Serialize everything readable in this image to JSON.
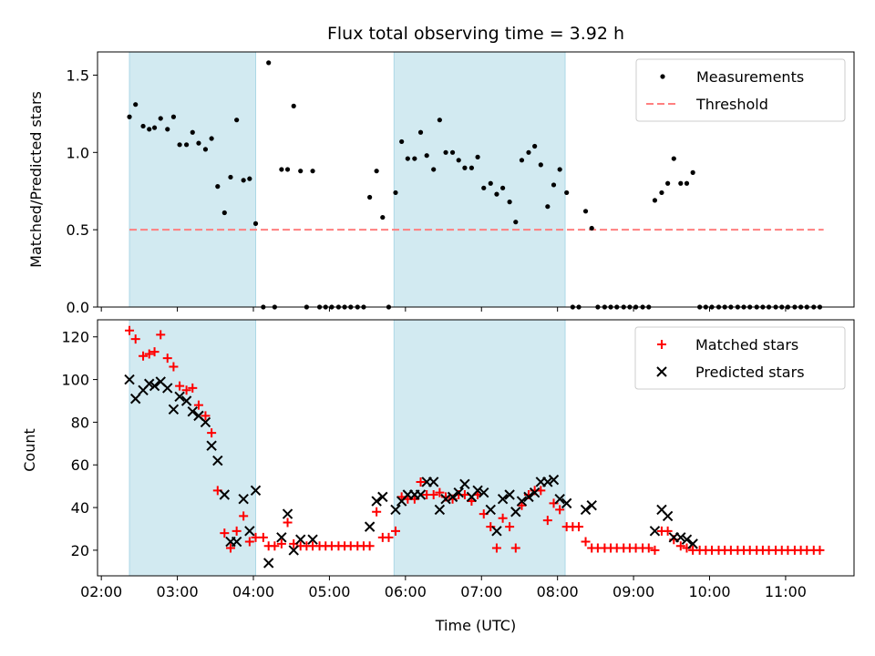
{
  "chart_data": {
    "title": "Flux total observing time = 3.92 h",
    "xlabel": "Time (UTC)",
    "x_unit": "hours",
    "xlim": [
      1.95,
      11.9
    ],
    "xticks": [
      {
        "v": 2,
        "label": "02:00"
      },
      {
        "v": 3,
        "label": "03:00"
      },
      {
        "v": 4,
        "label": "04:00"
      },
      {
        "v": 5,
        "label": "05:00"
      },
      {
        "v": 6,
        "label": "06:00"
      },
      {
        "v": 7,
        "label": "07:00"
      },
      {
        "v": 8,
        "label": "08:00"
      },
      {
        "v": 9,
        "label": "09:00"
      },
      {
        "v": 10,
        "label": "10:00"
      },
      {
        "v": 11,
        "label": "11:00"
      }
    ],
    "shaded_spans": [
      [
        2.37,
        4.03
      ],
      [
        5.85,
        8.1
      ]
    ],
    "shade_color": "#add8e6",
    "top": {
      "type": "scatter",
      "ylabel": "Matched/Predicted stars",
      "ylim": [
        0,
        1.65
      ],
      "yticks": [
        {
          "v": 0,
          "label": "0.0"
        },
        {
          "v": 0.5,
          "label": "0.5"
        },
        {
          "v": 1.0,
          "label": "1.0"
        },
        {
          "v": 1.5,
          "label": "1.5"
        }
      ],
      "legend": [
        {
          "name": "Measurements",
          "marker": "dot",
          "color": "#000000"
        },
        {
          "name": "Threshold",
          "marker": "dash",
          "color": "#ff7f7f"
        }
      ],
      "threshold": {
        "y": 0.5,
        "x": [
          2.37,
          11.5
        ],
        "color": "#ff7f7f"
      },
      "measurements": [
        [
          2.37,
          1.23
        ],
        [
          2.45,
          1.31
        ],
        [
          2.55,
          1.17
        ],
        [
          2.63,
          1.15
        ],
        [
          2.7,
          1.16
        ],
        [
          2.78,
          1.22
        ],
        [
          2.87,
          1.15
        ],
        [
          2.95,
          1.23
        ],
        [
          3.03,
          1.05
        ],
        [
          3.12,
          1.05
        ],
        [
          3.2,
          1.13
        ],
        [
          3.28,
          1.06
        ],
        [
          3.37,
          1.02
        ],
        [
          3.45,
          1.09
        ],
        [
          3.53,
          0.78
        ],
        [
          3.62,
          0.61
        ],
        [
          3.7,
          0.84
        ],
        [
          3.78,
          1.21
        ],
        [
          3.87,
          0.82
        ],
        [
          3.95,
          0.83
        ],
        [
          4.03,
          0.54
        ],
        [
          4.13,
          0.0
        ],
        [
          4.2,
          1.58
        ],
        [
          4.28,
          0.0
        ],
        [
          4.37,
          0.89
        ],
        [
          4.45,
          0.89
        ],
        [
          4.53,
          1.3
        ],
        [
          4.62,
          0.88
        ],
        [
          4.7,
          0.0
        ],
        [
          4.78,
          0.88
        ],
        [
          4.87,
          0.0
        ],
        [
          4.95,
          0.0
        ],
        [
          5.03,
          0.0
        ],
        [
          5.12,
          0.0
        ],
        [
          5.2,
          0.0
        ],
        [
          5.28,
          0.0
        ],
        [
          5.37,
          0.0
        ],
        [
          5.45,
          0.0
        ],
        [
          5.53,
          0.71
        ],
        [
          5.62,
          0.88
        ],
        [
          5.7,
          0.58
        ],
        [
          5.78,
          0.0
        ],
        [
          5.87,
          0.74
        ],
        [
          5.95,
          1.07
        ],
        [
          6.03,
          0.96
        ],
        [
          6.12,
          0.96
        ],
        [
          6.2,
          1.13
        ],
        [
          6.28,
          0.98
        ],
        [
          6.37,
          0.89
        ],
        [
          6.45,
          1.21
        ],
        [
          6.53,
          1.0
        ],
        [
          6.62,
          1.0
        ],
        [
          6.7,
          0.95
        ],
        [
          6.78,
          0.9
        ],
        [
          6.87,
          0.9
        ],
        [
          6.95,
          0.97
        ],
        [
          7.03,
          0.77
        ],
        [
          7.12,
          0.8
        ],
        [
          7.2,
          0.73
        ],
        [
          7.28,
          0.77
        ],
        [
          7.37,
          0.68
        ],
        [
          7.45,
          0.55
        ],
        [
          7.53,
          0.95
        ],
        [
          7.62,
          1.0
        ],
        [
          7.7,
          1.04
        ],
        [
          7.78,
          0.92
        ],
        [
          7.87,
          0.65
        ],
        [
          7.95,
          0.79
        ],
        [
          8.03,
          0.89
        ],
        [
          8.12,
          0.74
        ],
        [
          8.2,
          0.0
        ],
        [
          8.28,
          0.0
        ],
        [
          8.37,
          0.62
        ],
        [
          8.45,
          0.51
        ],
        [
          8.53,
          0.0
        ],
        [
          8.62,
          0.0
        ],
        [
          8.7,
          0.0
        ],
        [
          8.78,
          0.0
        ],
        [
          8.87,
          0.0
        ],
        [
          8.95,
          0.0
        ],
        [
          9.03,
          0.0
        ],
        [
          9.12,
          0.0
        ],
        [
          9.2,
          0.0
        ],
        [
          9.28,
          0.69
        ],
        [
          9.37,
          0.74
        ],
        [
          9.45,
          0.8
        ],
        [
          9.53,
          0.96
        ],
        [
          9.62,
          0.8
        ],
        [
          9.7,
          0.8
        ],
        [
          9.78,
          0.87
        ],
        [
          9.87,
          0.0
        ],
        [
          9.95,
          0.0
        ],
        [
          10.03,
          0.0
        ],
        [
          10.12,
          0.0
        ],
        [
          10.2,
          0.0
        ],
        [
          10.28,
          0.0
        ],
        [
          10.37,
          0.0
        ],
        [
          10.45,
          0.0
        ],
        [
          10.53,
          0.0
        ],
        [
          10.62,
          0.0
        ],
        [
          10.7,
          0.0
        ],
        [
          10.78,
          0.0
        ],
        [
          10.87,
          0.0
        ],
        [
          10.95,
          0.0
        ],
        [
          11.03,
          0.0
        ],
        [
          11.12,
          0.0
        ],
        [
          11.2,
          0.0
        ],
        [
          11.28,
          0.0
        ],
        [
          11.37,
          0.0
        ],
        [
          11.45,
          0.0
        ]
      ]
    },
    "bottom": {
      "type": "scatter",
      "ylabel": "Count",
      "ylim": [
        8,
        128
      ],
      "yticks": [
        {
          "v": 20,
          "label": "20"
        },
        {
          "v": 40,
          "label": "40"
        },
        {
          "v": 60,
          "label": "60"
        },
        {
          "v": 80,
          "label": "80"
        },
        {
          "v": 100,
          "label": "100"
        },
        {
          "v": 120,
          "label": "120"
        }
      ],
      "legend": [
        {
          "name": "Matched stars",
          "marker": "plus",
          "color": "#ff0000"
        },
        {
          "name": "Predicted stars",
          "marker": "x",
          "color": "#000000"
        }
      ],
      "matched": [
        [
          2.37,
          123
        ],
        [
          2.45,
          119
        ],
        [
          2.55,
          111
        ],
        [
          2.63,
          112
        ],
        [
          2.7,
          113
        ],
        [
          2.78,
          121
        ],
        [
          2.87,
          110
        ],
        [
          2.95,
          106
        ],
        [
          3.03,
          97
        ],
        [
          3.12,
          95
        ],
        [
          3.2,
          96
        ],
        [
          3.28,
          88
        ],
        [
          3.37,
          83
        ],
        [
          3.45,
          75
        ],
        [
          3.53,
          48
        ],
        [
          3.62,
          28
        ],
        [
          3.7,
          21
        ],
        [
          3.78,
          29
        ],
        [
          3.87,
          36
        ],
        [
          3.95,
          24
        ],
        [
          4.03,
          26
        ],
        [
          4.13,
          26
        ],
        [
          4.2,
          22
        ],
        [
          4.28,
          22
        ],
        [
          4.37,
          23
        ],
        [
          4.45,
          33
        ],
        [
          4.53,
          23
        ],
        [
          4.62,
          22
        ],
        [
          4.7,
          22
        ],
        [
          4.78,
          22
        ],
        [
          4.87,
          22
        ],
        [
          4.95,
          22
        ],
        [
          5.03,
          22
        ],
        [
          5.12,
          22
        ],
        [
          5.2,
          22
        ],
        [
          5.28,
          22
        ],
        [
          5.37,
          22
        ],
        [
          5.45,
          22
        ],
        [
          5.53,
          22
        ],
        [
          5.62,
          38
        ],
        [
          5.7,
          26
        ],
        [
          5.78,
          26
        ],
        [
          5.87,
          29
        ],
        [
          5.95,
          45
        ],
        [
          6.03,
          44
        ],
        [
          6.12,
          44
        ],
        [
          6.2,
          52
        ],
        [
          6.28,
          46
        ],
        [
          6.37,
          46
        ],
        [
          6.45,
          47
        ],
        [
          6.53,
          45
        ],
        [
          6.62,
          44
        ],
        [
          6.7,
          46
        ],
        [
          6.78,
          46
        ],
        [
          6.87,
          43
        ],
        [
          6.95,
          46
        ],
        [
          7.03,
          37
        ],
        [
          7.12,
          31
        ],
        [
          7.2,
          21
        ],
        [
          7.28,
          35
        ],
        [
          7.37,
          31
        ],
        [
          7.45,
          21
        ],
        [
          7.53,
          41
        ],
        [
          7.62,
          46
        ],
        [
          7.7,
          48
        ],
        [
          7.78,
          48
        ],
        [
          7.87,
          34
        ],
        [
          7.95,
          42
        ],
        [
          8.03,
          39
        ],
        [
          8.12,
          31
        ],
        [
          8.2,
          31
        ],
        [
          8.28,
          31
        ],
        [
          8.37,
          24
        ],
        [
          8.45,
          21
        ],
        [
          8.53,
          21
        ],
        [
          8.62,
          21
        ],
        [
          8.7,
          21
        ],
        [
          8.78,
          21
        ],
        [
          8.87,
          21
        ],
        [
          8.95,
          21
        ],
        [
          9.03,
          21
        ],
        [
          9.12,
          21
        ],
        [
          9.2,
          21
        ],
        [
          9.28,
          20
        ],
        [
          9.37,
          29
        ],
        [
          9.45,
          29
        ],
        [
          9.53,
          25
        ],
        [
          9.62,
          22
        ],
        [
          9.7,
          21
        ],
        [
          9.78,
          20
        ],
        [
          9.87,
          20
        ],
        [
          9.95,
          20
        ],
        [
          10.03,
          20
        ],
        [
          10.12,
          20
        ],
        [
          10.2,
          20
        ],
        [
          10.28,
          20
        ],
        [
          10.37,
          20
        ],
        [
          10.45,
          20
        ],
        [
          10.53,
          20
        ],
        [
          10.62,
          20
        ],
        [
          10.7,
          20
        ],
        [
          10.78,
          20
        ],
        [
          10.87,
          20
        ],
        [
          10.95,
          20
        ],
        [
          11.03,
          20
        ],
        [
          11.12,
          20
        ],
        [
          11.2,
          20
        ],
        [
          11.28,
          20
        ],
        [
          11.37,
          20
        ],
        [
          11.45,
          20
        ]
      ],
      "predicted": [
        [
          2.37,
          100
        ],
        [
          2.45,
          91
        ],
        [
          2.55,
          95
        ],
        [
          2.63,
          98
        ],
        [
          2.7,
          97
        ],
        [
          2.78,
          99
        ],
        [
          2.87,
          96
        ],
        [
          2.95,
          86
        ],
        [
          3.03,
          92
        ],
        [
          3.12,
          90
        ],
        [
          3.2,
          85
        ],
        [
          3.28,
          83
        ],
        [
          3.37,
          80
        ],
        [
          3.45,
          69
        ],
        [
          3.53,
          62
        ],
        [
          3.62,
          46
        ],
        [
          3.7,
          24
        ],
        [
          3.78,
          24
        ],
        [
          3.87,
          44
        ],
        [
          3.95,
          29
        ],
        [
          4.03,
          48
        ],
        [
          4.2,
          14
        ],
        [
          4.37,
          26
        ],
        [
          4.45,
          37
        ],
        [
          4.53,
          20
        ],
        [
          4.62,
          25
        ],
        [
          4.78,
          25
        ],
        [
          5.53,
          31
        ],
        [
          5.62,
          43
        ],
        [
          5.7,
          45
        ],
        [
          5.87,
          39
        ],
        [
          5.95,
          43
        ],
        [
          6.03,
          46
        ],
        [
          6.12,
          46
        ],
        [
          6.2,
          46
        ],
        [
          6.28,
          52
        ],
        [
          6.37,
          52
        ],
        [
          6.45,
          39
        ],
        [
          6.53,
          44
        ],
        [
          6.62,
          45
        ],
        [
          6.7,
          47
        ],
        [
          6.78,
          51
        ],
        [
          6.87,
          45
        ],
        [
          6.95,
          48
        ],
        [
          7.03,
          47
        ],
        [
          7.12,
          39
        ],
        [
          7.2,
          29
        ],
        [
          7.28,
          44
        ],
        [
          7.37,
          46
        ],
        [
          7.45,
          38
        ],
        [
          7.53,
          43
        ],
        [
          7.62,
          45
        ],
        [
          7.7,
          47
        ],
        [
          7.78,
          52
        ],
        [
          7.87,
          52
        ],
        [
          7.95,
          53
        ],
        [
          8.03,
          44
        ],
        [
          8.12,
          42
        ],
        [
          8.37,
          39
        ],
        [
          8.45,
          41
        ],
        [
          9.28,
          29
        ],
        [
          9.37,
          39
        ],
        [
          9.45,
          36
        ],
        [
          9.53,
          26
        ],
        [
          9.62,
          26
        ],
        [
          9.7,
          25
        ],
        [
          9.78,
          23
        ]
      ]
    }
  }
}
